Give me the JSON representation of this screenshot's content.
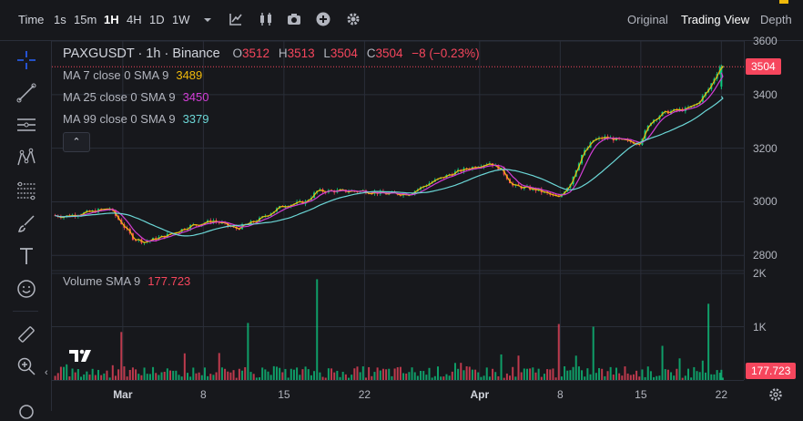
{
  "toolbar": {
    "time_label": "Time",
    "intervals": [
      "1s",
      "15m",
      "1H",
      "4H",
      "1D",
      "1W"
    ],
    "active_interval": "1H",
    "tabs": [
      "Original",
      "Trading View",
      "Depth"
    ],
    "active_tab": "Trading View",
    "icons": [
      "chevron-down-icon",
      "indicators-icon",
      "candle-style-icon",
      "camera-icon",
      "plus-circle-icon",
      "gear-icon"
    ]
  },
  "left_toolbar": {
    "icons": [
      "crosshair-icon",
      "trend-line-icon",
      "horizontal-lines-icon",
      "pattern-icon",
      "fib-lines-icon",
      "brush-icon",
      "text-icon",
      "emoji-icon",
      "ruler-icon",
      "zoom-in-icon"
    ]
  },
  "legend": {
    "symbol": "PAXGUSDT · 1h · Binance",
    "o_label": "O",
    "o_value": "3512",
    "h_label": "H",
    "h_value": "3513",
    "l_label": "L",
    "l_value": "3504",
    "c_label": "C",
    "c_value": "3504",
    "change": "−8 (−0.23%)",
    "ma7_label": "MA 7 close 0 SMA 9",
    "ma7_value": "3489",
    "ma25_label": "MA 25 close 0 SMA 9",
    "ma25_value": "3450",
    "ma99_label": "MA 99 close 0 SMA 9",
    "ma99_value": "3379",
    "collapse_glyph": "⌃",
    "volume_label": "Volume SMA 9",
    "volume_value": "177.723"
  },
  "price_axis": {
    "ticks": [
      "3600",
      "3400",
      "3200",
      "3000",
      "2800"
    ],
    "last_price_badge": "3504",
    "volume_ticks": [
      "2K",
      "1K"
    ],
    "volume_badge": "177.723"
  },
  "time_axis": {
    "labels": [
      "Mar",
      "8",
      "15",
      "22",
      "Apr",
      "8",
      "15",
      "22"
    ],
    "bold_labels": [
      "Mar",
      "Apr"
    ]
  },
  "colors": {
    "background": "#17181c",
    "grid": "#2a2e39",
    "up": "#0ecb81",
    "down": "#f6465d",
    "ma7": "#f0b90b",
    "ma25": "#d23ed6",
    "ma99": "#6bd6d6",
    "accent": "#2962ff"
  },
  "chart_data": {
    "type": "candlestick",
    "symbol": "PAXGUSDT",
    "interval": "1h",
    "ylim": [
      2750,
      3600
    ],
    "volume_ylim": [
      0,
      2000
    ],
    "x_range": [
      "2025-02-23",
      "2025-04-23"
    ],
    "price_points": [
      {
        "date": "2025-02-23",
        "price": 2950
      },
      {
        "date": "2025-02-24",
        "price": 2945
      },
      {
        "date": "2025-02-26",
        "price": 2960
      },
      {
        "date": "2025-02-28",
        "price": 2975
      },
      {
        "date": "2025-03-01",
        "price": 2920
      },
      {
        "date": "2025-03-02",
        "price": 2865
      },
      {
        "date": "2025-03-03",
        "price": 2850
      },
      {
        "date": "2025-03-05",
        "price": 2875
      },
      {
        "date": "2025-03-07",
        "price": 2910
      },
      {
        "date": "2025-03-09",
        "price": 2930
      },
      {
        "date": "2025-03-11",
        "price": 2900
      },
      {
        "date": "2025-03-13",
        "price": 2935
      },
      {
        "date": "2025-03-15",
        "price": 2985
      },
      {
        "date": "2025-03-17",
        "price": 3000
      },
      {
        "date": "2025-03-18",
        "price": 3040
      },
      {
        "date": "2025-03-20",
        "price": 3040
      },
      {
        "date": "2025-03-22",
        "price": 3040
      },
      {
        "date": "2025-03-24",
        "price": 3030
      },
      {
        "date": "2025-03-26",
        "price": 3030
      },
      {
        "date": "2025-03-28",
        "price": 3075
      },
      {
        "date": "2025-03-30",
        "price": 3110
      },
      {
        "date": "2025-04-01",
        "price": 3135
      },
      {
        "date": "2025-04-02",
        "price": 3145
      },
      {
        "date": "2025-04-03",
        "price": 3120
      },
      {
        "date": "2025-04-04",
        "price": 3060
      },
      {
        "date": "2025-04-06",
        "price": 3045
      },
      {
        "date": "2025-04-08",
        "price": 3015
      },
      {
        "date": "2025-04-09",
        "price": 3070
      },
      {
        "date": "2025-04-10",
        "price": 3175
      },
      {
        "date": "2025-04-11",
        "price": 3230
      },
      {
        "date": "2025-04-12",
        "price": 3240
      },
      {
        "date": "2025-04-14",
        "price": 3225
      },
      {
        "date": "2025-04-15",
        "price": 3220
      },
      {
        "date": "2025-04-16",
        "price": 3300
      },
      {
        "date": "2025-04-17",
        "price": 3330
      },
      {
        "date": "2025-04-18",
        "price": 3340
      },
      {
        "date": "2025-04-19",
        "price": 3345
      },
      {
        "date": "2025-04-20",
        "price": 3365
      },
      {
        "date": "2025-04-21",
        "price": 3420
      },
      {
        "date": "2025-04-22",
        "price": 3504
      }
    ],
    "series": [
      {
        "name": "MA 7",
        "value": 3489
      },
      {
        "name": "MA 25",
        "value": 3450
      },
      {
        "name": "MA 99",
        "value": 3379
      }
    ],
    "volume_sma9": 177.723,
    "volume_spikes": [
      {
        "date": "2025-03-18",
        "volume": 1890
      },
      {
        "date": "2025-04-21",
        "volume": 1430
      },
      {
        "date": "2025-03-12",
        "volume": 1070
      },
      {
        "date": "2025-04-08",
        "volume": 1050
      },
      {
        "date": "2025-04-11",
        "volume": 1000
      },
      {
        "date": "2025-03-01",
        "volume": 900
      }
    ],
    "grid": true
  }
}
